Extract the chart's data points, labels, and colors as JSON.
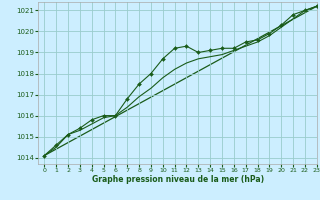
{
  "title": "Graphe pression niveau de la mer (hPa)",
  "background_color": "#cceeff",
  "grid_color": "#99cccc",
  "line_color": "#1a5c1a",
  "marker_color": "#1a5c1a",
  "xlim": [
    -0.5,
    23
  ],
  "ylim": [
    1013.7,
    1021.4
  ],
  "yticks": [
    1014,
    1015,
    1016,
    1017,
    1018,
    1019,
    1020,
    1021
  ],
  "xticks": [
    0,
    1,
    2,
    3,
    4,
    5,
    6,
    7,
    8,
    9,
    10,
    11,
    12,
    13,
    14,
    15,
    16,
    17,
    18,
    19,
    20,
    21,
    22,
    23
  ],
  "series1_x": [
    0,
    1,
    2,
    3,
    4,
    5,
    6,
    7,
    8,
    9,
    10,
    11,
    12,
    13,
    14,
    15,
    16,
    17,
    18,
    19,
    20,
    21,
    22,
    23
  ],
  "series1_y": [
    1014.1,
    1014.6,
    1015.1,
    1015.4,
    1015.8,
    1016.0,
    1016.0,
    1016.8,
    1017.5,
    1018.0,
    1018.7,
    1019.2,
    1019.3,
    1019.0,
    1019.1,
    1019.2,
    1019.2,
    1019.5,
    1019.6,
    1019.9,
    1020.3,
    1020.8,
    1021.0,
    1021.2
  ],
  "series2_x": [
    0,
    1,
    2,
    3,
    4,
    5,
    6,
    7,
    8,
    9,
    10,
    11,
    12,
    13,
    14,
    15,
    16,
    17,
    18,
    19,
    20,
    21,
    22,
    23
  ],
  "series2_y": [
    1014.1,
    1014.5,
    1015.1,
    1015.3,
    1015.6,
    1015.9,
    1016.0,
    1016.4,
    1016.9,
    1017.3,
    1017.8,
    1018.2,
    1018.5,
    1018.7,
    1018.8,
    1018.9,
    1019.1,
    1019.3,
    1019.5,
    1019.8,
    1020.2,
    1020.6,
    1021.0,
    1021.2
  ],
  "series3_x": [
    0,
    23
  ],
  "series3_y": [
    1014.1,
    1021.2
  ]
}
